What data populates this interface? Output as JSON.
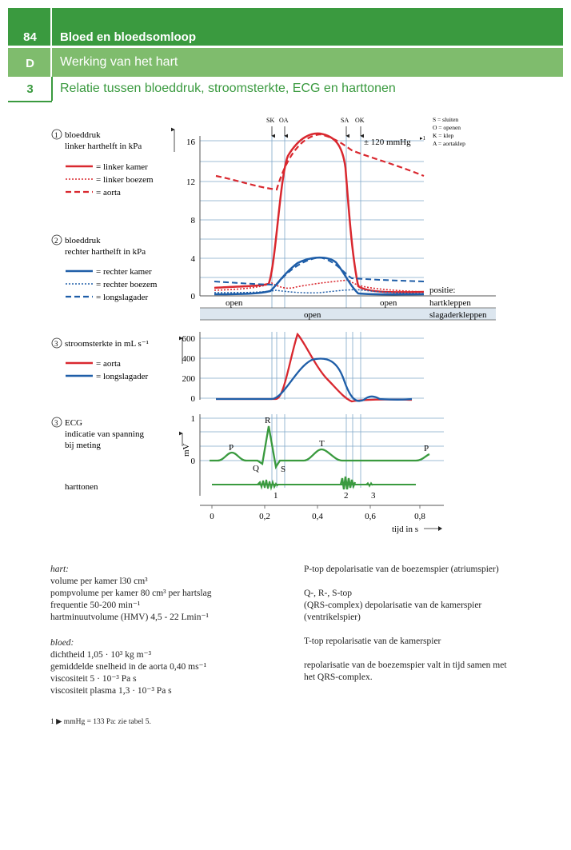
{
  "header": {
    "page_number": "84",
    "chapter_title": "Bloed en bloedsomloop",
    "section_letter": "D",
    "section_title": "Werking van het hart",
    "sub_number": "3",
    "sub_title": "Relatie tussen bloeddruk, stroomsterkte, ECG en harttonen"
  },
  "figure": {
    "valve_events": [
      "SK",
      "OA",
      "SA",
      "OK"
    ],
    "key": [
      "S = sluiten",
      "O = openen",
      "K = klep",
      "A = aortaklep"
    ],
    "mmhg_note": "± 120 mmHg",
    "mmhg_note_sup": "▸1",
    "panel1": {
      "title_line1": "bloeddruk",
      "title_line2": "linker harthelft in kPa",
      "legend": [
        "= linker kamer",
        "= linker boezem",
        "= aorta"
      ],
      "y_ticks": [
        "16",
        "12",
        "8",
        "4",
        "0"
      ]
    },
    "panel2": {
      "title_line1": "bloeddruk",
      "title_line2": "rechter harthelft in kPa",
      "legend": [
        "= rechter kamer",
        "= rechter boezem",
        "= longslagader"
      ]
    },
    "positions": {
      "label": "positie:",
      "hartkleppen": "hartkleppen",
      "slagaderkleppen": "slagaderkleppen",
      "open_left": "open",
      "open_right": "open",
      "open_middle": "open"
    },
    "panel3": {
      "title": "stroomsterkte in mL s⁻¹",
      "legend": [
        "= aorta",
        "= longslagader"
      ],
      "y_ticks": [
        "600",
        "400",
        "200",
        "0"
      ]
    },
    "panel4": {
      "title_line1": "ECG",
      "title_line2": "indicatie van spanning",
      "title_line3": "bij meting",
      "ylabel": "mV",
      "y_ticks": [
        "1",
        "0"
      ],
      "waves": [
        "P",
        "Q",
        "R",
        "S",
        "T",
        "P"
      ]
    },
    "heart_sounds": {
      "label": "harttonen",
      "markers": [
        "1",
        "2",
        "3"
      ]
    },
    "x_axis": {
      "ticks": [
        "0",
        "0,2",
        "0,4",
        "0,6",
        "0,8"
      ],
      "label": "tijd in s"
    },
    "colors": {
      "red": "#d9282f",
      "blue": "#1f5ea8",
      "green": "#3a9a3f",
      "grid": "#7fa7c8"
    }
  },
  "left_text": {
    "hart_title": "hart:",
    "hart_lines": [
      "volume per kamer l30 cm³",
      "pompvolume per kamer 80 cm³ per hartslag",
      "frequentie 50-200 min⁻¹",
      "hartminuutvolume (HMV) 4,5 - 22 Lmin⁻¹"
    ],
    "bloed_title": "bloed:",
    "bloed_lines": [
      "dichtheid 1,05 · 10³ kg m⁻³",
      "gemiddelde snelheid in de aorta 0,40 ms⁻¹",
      "viscositeit 5 · 10⁻³ Pa s",
      "viscositeit plasma 1,3 · 10⁻³ Pa s"
    ]
  },
  "right_text": {
    "p_top": "P-top depolarisatie van de boezemspier (atriumspier)",
    "qrs_line1": "Q-, R-, S-top",
    "qrs_line2": "(QRS-complex) depolarisatie van de kamerspier",
    "qrs_line3": "(ventrikelspier)",
    "t_top": "T-top repolarisatie van de kamerspier",
    "repol_line1": "repolarisatie van de boezemspier valt in tijd samen met",
    "repol_line2": "het QRS-complex."
  },
  "footnote": "1 ▶ mmHg = 133 Pa: zie tabel 5."
}
